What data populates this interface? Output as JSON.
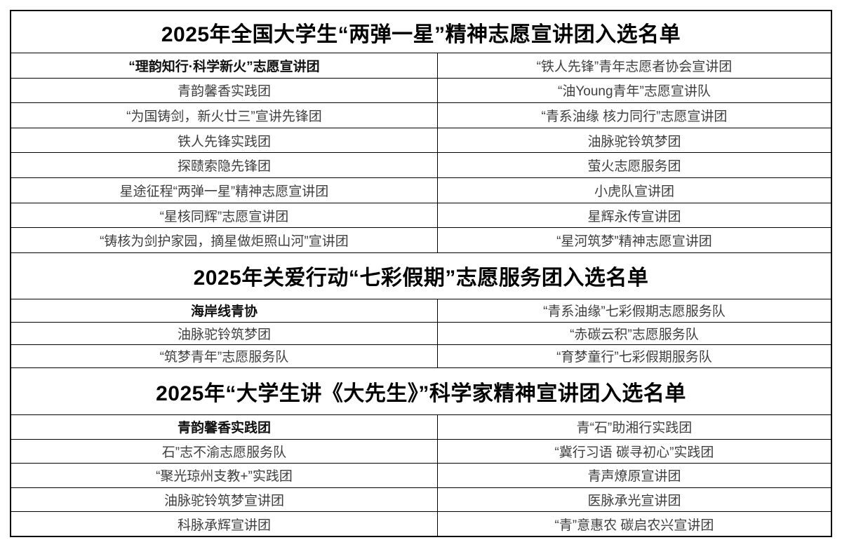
{
  "colors": {
    "background": "#ffffff",
    "border": "#000000",
    "title_text": "#000000",
    "cell_text": "#3f3f3f",
    "bold_cell_text": "#111111"
  },
  "table": {
    "columns": 2,
    "sections": [
      {
        "title": "2025年全国大学生“两弹一星”精神志愿宣讲团入选名单",
        "rows": [
          {
            "left": "“理韵知行·科学新火”志愿宣讲团",
            "right": "“铁人先锋”青年志愿者协会宣讲团",
            "left_bold": true
          },
          {
            "left": "青韵馨香实践团",
            "right": "“油Young青年”志愿宣讲队",
            "left_bold": false
          },
          {
            "left": "“为国铸剑，新火廿三”宣讲先锋团",
            "right": "“青系油缘 核力同行”志愿宣讲团",
            "left_bold": false
          },
          {
            "left": "铁人先锋实践团",
            "right": "油脉驼铃筑梦团",
            "left_bold": false
          },
          {
            "left": "探赜索隐先锋团",
            "right": "萤火志愿服务团",
            "left_bold": false
          },
          {
            "left": "星途征程“两弹一星”精神志愿宣讲团",
            "right": "小虎队宣讲团",
            "left_bold": false
          },
          {
            "left": "“星核同辉”志愿宣讲团",
            "right": "星辉永传宣讲团",
            "left_bold": false
          },
          {
            "left": "“铸核为剑护家园，摘星做炬照山河”宣讲团",
            "right": "“星河筑梦”精神志愿宣讲团",
            "left_bold": false
          }
        ]
      },
      {
        "title": "2025年关爱行动“七彩假期”志愿服务团入选名单",
        "rows": [
          {
            "left": "海岸线青协",
            "right": "“青系油缘”七彩假期志愿服务队",
            "left_bold": true
          },
          {
            "left": "油脉驼铃筑梦团",
            "right": "“赤碳云积”志愿服务队",
            "left_bold": false
          },
          {
            "left": "“筑梦青年”志愿服务队",
            "right": "“育梦童行”七彩假期服务队",
            "left_bold": false
          }
        ]
      },
      {
        "title": "2025年“大学生讲《大先生》”科学家精神宣讲团入选名单",
        "rows": [
          {
            "left": "青韵馨香实践团",
            "right": "青“石”助湘行实践团",
            "left_bold": true
          },
          {
            "left": "石”志不渝志愿服务队",
            "right": "“冀行习语 碳寻初心”实践团",
            "left_bold": false
          },
          {
            "left": "“聚光琼州支教+”实践团",
            "right": "青声燎原宣讲团",
            "left_bold": false
          },
          {
            "left": "油脉驼铃筑梦宣讲团",
            "right": "医脉承光宣讲团",
            "left_bold": false
          },
          {
            "left": "科脉承辉宣讲团",
            "right": "“青”意惠农 碳启农兴宣讲团",
            "left_bold": false
          }
        ]
      }
    ]
  }
}
